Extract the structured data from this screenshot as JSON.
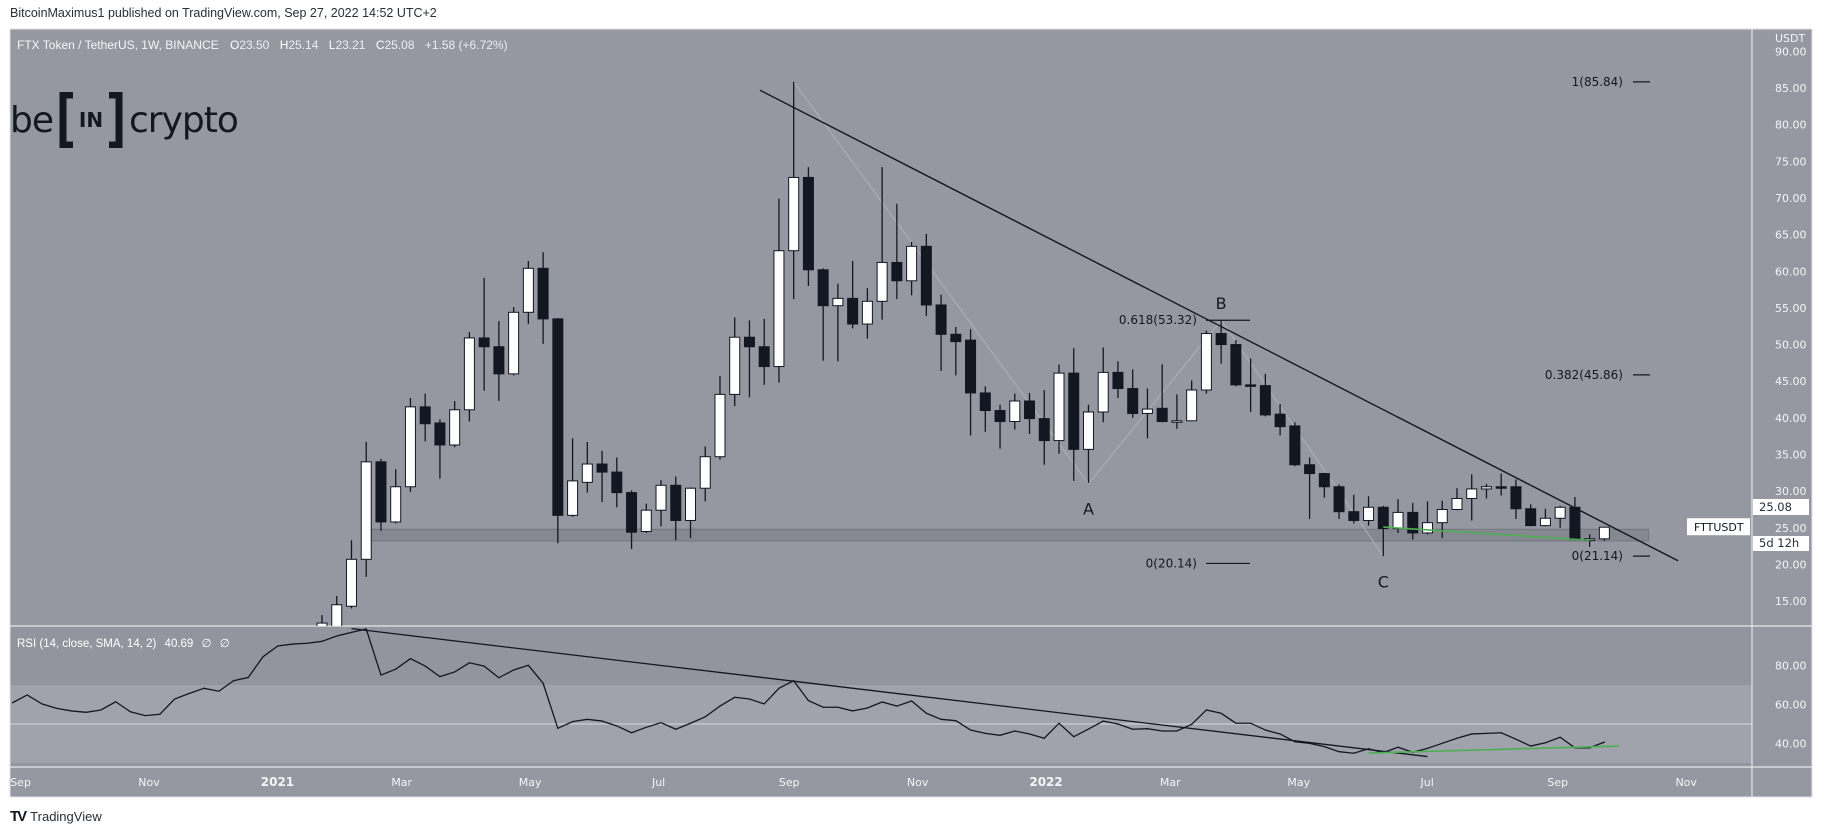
{
  "header": {
    "publisher": "BitcoinMaximus1 published on TradingView.com, Sep 27, 2022 14:52 UTC+2"
  },
  "legend": {
    "symbol": "FTX Token / TetherUS, 1W, BINANCE",
    "open_label": "O",
    "open": "23.50",
    "high_label": "H",
    "high": "25.14",
    "low_label": "L",
    "low": "23.21",
    "close_label": "C",
    "close": "25.08",
    "change": "+1.58 (+6.72%)"
  },
  "watermark": {
    "text": "beincrypto",
    "parts": [
      "be",
      "IN",
      "crypto"
    ]
  },
  "rsi_legend": {
    "title": "RSI (14, close, SMA, 14, 2)",
    "value": "40.69",
    "extra1": "∅",
    "extra2": "∅"
  },
  "price_axis": {
    "currency": "USDT",
    "ticks": [
      "15.00",
      "20.00",
      "25.00",
      "30.00",
      "35.00",
      "40.00",
      "45.00",
      "50.00",
      "55.00",
      "60.00",
      "65.00",
      "70.00",
      "75.00",
      "80.00",
      "85.00",
      "90.00"
    ],
    "last_price": "25.08",
    "countdown": "5d 12h",
    "symbol_tag": "FTTUSDT"
  },
  "rsi_axis": {
    "ticks": [
      "40.00",
      "60.00",
      "80.00"
    ]
  },
  "time_axis": {
    "ticks": [
      {
        "label": "Sep",
        "date": "2020-09-01"
      },
      {
        "label": "Nov",
        "date": "2020-11-01"
      },
      {
        "label": "2021",
        "date": "2021-01-01"
      },
      {
        "label": "Mar",
        "date": "2021-03-01"
      },
      {
        "label": "May",
        "date": "2021-05-01"
      },
      {
        "label": "Jul",
        "date": "2021-07-01"
      },
      {
        "label": "Sep",
        "date": "2021-09-01"
      },
      {
        "label": "Nov",
        "date": "2021-11-01"
      },
      {
        "label": "2022",
        "date": "2022-01-01"
      },
      {
        "label": "Mar",
        "date": "2022-03-01"
      },
      {
        "label": "May",
        "date": "2022-05-01"
      },
      {
        "label": "Jul",
        "date": "2022-07-01"
      },
      {
        "label": "Sep",
        "date": "2022-09-01"
      },
      {
        "label": "Nov",
        "date": "2022-11-01"
      }
    ]
  },
  "footer": {
    "brand": "TradingView",
    "mark": "TV"
  },
  "colors": {
    "pane": "#9598a1",
    "rsi_band": "#a0a3ab",
    "axis": "#9598a1",
    "bull": "#ffffff",
    "bear": "#131722",
    "line": "#131722",
    "green": "#4caf50",
    "zigzag": "#aeb1b8",
    "zone": "#80838c"
  },
  "chart_data": [
    {
      "type": "candlestick",
      "title": "FTX Token / TetherUS, 1W, BINANCE",
      "ylabel": "USDT",
      "ylim": [
        11.6,
        92
      ],
      "interval": "1W",
      "first_week": "2021-01-25",
      "ohlc_fields": [
        "open",
        "high",
        "low",
        "close"
      ],
      "candles": [
        [
          10,
          13.1,
          9,
          12
        ],
        [
          11.5,
          15.7,
          11,
          14.5
        ],
        [
          14.3,
          23.3,
          14,
          20.7
        ],
        [
          20.7,
          36.7,
          18.3,
          34
        ],
        [
          34,
          34.4,
          24.6,
          25.8
        ],
        [
          25.8,
          33,
          25.6,
          30.6
        ],
        [
          30.6,
          42.7,
          29.9,
          41.5
        ],
        [
          41.5,
          43.3,
          36.8,
          39.2
        ],
        [
          39.3,
          39.8,
          31.7,
          36.3
        ],
        [
          36.3,
          42.3,
          36,
          41.1
        ],
        [
          41.1,
          51.7,
          39.5,
          50.9
        ],
        [
          50.9,
          59.1,
          43.7,
          49.7
        ],
        [
          49.7,
          53.2,
          42.3,
          46
        ],
        [
          46,
          55.1,
          45.8,
          54.4
        ],
        [
          54.4,
          61.4,
          52.8,
          60.4
        ],
        [
          60.4,
          62.6,
          50.1,
          53.5
        ],
        [
          53.5,
          53.6,
          22.9,
          26.7
        ],
        [
          26.7,
          37.2,
          26.5,
          31.4
        ],
        [
          31.2,
          36.7,
          29.8,
          33.7
        ],
        [
          33.7,
          35.5,
          28.5,
          32.6
        ],
        [
          32.6,
          34.6,
          27.8,
          29.8
        ],
        [
          29.8,
          30.1,
          22.1,
          24.4
        ],
        [
          24.5,
          28.3,
          24.3,
          27.4
        ],
        [
          27.4,
          31.5,
          25.2,
          30.8
        ],
        [
          30.8,
          32,
          23.3,
          26
        ],
        [
          26,
          30.5,
          23.6,
          30.4
        ],
        [
          30.4,
          36.1,
          28.6,
          34.7
        ],
        [
          34.7,
          45.7,
          34.3,
          43.2
        ],
        [
          43.2,
          53.7,
          41.6,
          51
        ],
        [
          51,
          53.3,
          42.8,
          49.7
        ],
        [
          49.7,
          53.5,
          44.5,
          47
        ],
        [
          47,
          69.9,
          44.8,
          62.8
        ],
        [
          62.8,
          85.84,
          56.2,
          72.8
        ],
        [
          72.8,
          74.2,
          58,
          60.2
        ],
        [
          60.2,
          60.4,
          47.8,
          55.3
        ],
        [
          55.3,
          58.3,
          47.7,
          56.3
        ],
        [
          56.3,
          61.4,
          52.2,
          52.8
        ],
        [
          52.8,
          57.7,
          50.8,
          55.9
        ],
        [
          55.9,
          74.2,
          53.4,
          61.2
        ],
        [
          61.2,
          69.2,
          56.2,
          58.7
        ],
        [
          58.7,
          64,
          56.7,
          63.4
        ],
        [
          63.4,
          65.1,
          53.9,
          55.4
        ],
        [
          55.4,
          56.8,
          46.4,
          51.4
        ],
        [
          51.4,
          52.4,
          45.8,
          50.4
        ],
        [
          50.6,
          52.1,
          37.6,
          43.4
        ],
        [
          43.4,
          44.3,
          38.1,
          41
        ],
        [
          41,
          41.8,
          35.8,
          39.5
        ],
        [
          39.5,
          43.3,
          38.4,
          42.3
        ],
        [
          42.3,
          43.4,
          37.8,
          39.9
        ],
        [
          39.9,
          43.8,
          33.6,
          36.9
        ],
        [
          36.9,
          47.3,
          35.1,
          46.1
        ],
        [
          46.1,
          49.5,
          31.4,
          35.7
        ],
        [
          35.7,
          41.8,
          31.1,
          40.8
        ],
        [
          40.8,
          49.6,
          39.4,
          46.2
        ],
        [
          46.2,
          47.7,
          42.7,
          44
        ],
        [
          44,
          46.6,
          40,
          40.6
        ],
        [
          40.6,
          44,
          37.2,
          41.2
        ],
        [
          41.3,
          47.3,
          39.4,
          39.5
        ],
        [
          39.5,
          43.2,
          38.5,
          39.6
        ],
        [
          39.6,
          45.1,
          39.5,
          43.8
        ],
        [
          43.8,
          51.9,
          43.3,
          51.5
        ],
        [
          51.5,
          53.32,
          47.4,
          50
        ],
        [
          50,
          50.6,
          44.3,
          44.5
        ],
        [
          44.5,
          48.1,
          40.8,
          44.4
        ],
        [
          44.4,
          46,
          40.2,
          40.4
        ],
        [
          40.5,
          41.9,
          37.6,
          38.8
        ],
        [
          38.9,
          39.4,
          33.4,
          33.6
        ],
        [
          33.6,
          34.6,
          26.2,
          32.4
        ],
        [
          32.4,
          32.5,
          29.1,
          30.6
        ],
        [
          30.6,
          30.9,
          26.2,
          27.2
        ],
        [
          27.2,
          29.5,
          25.6,
          26
        ],
        [
          26,
          29.3,
          25.3,
          27.8
        ],
        [
          27.8,
          28,
          21.14,
          24.9
        ],
        [
          24.9,
          28.9,
          24.3,
          27.1
        ],
        [
          27.1,
          28.4,
          23.4,
          24.3
        ],
        [
          24.3,
          28.6,
          24.1,
          25.7
        ],
        [
          25.7,
          28.7,
          23.6,
          27.5
        ],
        [
          27.5,
          30.4,
          27.4,
          29
        ],
        [
          29,
          32.3,
          26,
          30.3
        ],
        [
          30.3,
          31,
          29,
          30.6
        ],
        [
          30.6,
          32.4,
          29.4,
          30.5
        ],
        [
          30.6,
          31.6,
          26.2,
          27.6
        ],
        [
          27.6,
          28.2,
          25.2,
          25.3
        ],
        [
          25.3,
          27.6,
          25.2,
          26.3
        ],
        [
          26.3,
          28,
          25,
          27.8
        ],
        [
          27.8,
          29.2,
          23.3,
          23.4
        ],
        [
          23.4,
          24.1,
          22.4,
          23.5
        ],
        [
          23.5,
          25.14,
          23.21,
          25.08
        ]
      ],
      "drawings": {
        "descending_trendline": [
          [
            "2021-08-21",
            84.7
          ],
          [
            "2022-10-31",
            20.5
          ]
        ],
        "support_zone": {
          "from": "2021-02-15",
          "to": "2022-10-17",
          "low": 23.2,
          "high": 24.8
        },
        "green_support_line": [
          [
            "2022-06-13",
            25.1
          ],
          [
            "2022-09-19",
            23.3
          ]
        ],
        "wave_zigzag": [
          [
            "2021-09-06",
            85.84
          ],
          [
            "2022-01-24",
            31.0
          ],
          [
            "2022-03-28",
            53.32
          ],
          [
            "2022-06-13",
            21.14
          ]
        ],
        "wave_labels": [
          {
            "text": "A",
            "date": "2022-01-24",
            "price": 27.6
          },
          {
            "text": "B",
            "date": "2022-03-28",
            "price": 55.7
          },
          {
            "text": "C",
            "date": "2022-06-13",
            "price": 17.7
          }
        ],
        "fib_retracements": [
          {
            "levels": [
              {
                "label": "0.618(53.32)",
                "price": 53.32
              },
              {
                "label": "0(20.14)",
                "price": 20.14
              }
            ]
          },
          {
            "levels": [
              {
                "label": "1(85.84)",
                "price": 85.84
              },
              {
                "label": "0.382(45.86)",
                "price": 45.86
              },
              {
                "label": "0(21.14)",
                "price": 21.14
              }
            ]
          }
        ]
      }
    },
    {
      "type": "line",
      "title": "RSI (14, close, SMA, 14, 2)",
      "ylim": [
        25,
        104
      ],
      "bands": {
        "upper": 70,
        "middle": 50,
        "lower": 30
      },
      "first_week": "2020-08-31",
      "values": [
        60.9,
        64.9,
        60.3,
        58.0,
        56.7,
        56.0,
        57.2,
        61.4,
        56.3,
        54.3,
        55.0,
        62.8,
        65.7,
        68.3,
        66.8,
        72.2,
        73.9,
        84.5,
        90,
        91,
        91.4,
        92.4,
        95.1,
        97,
        98.7,
        75.1,
        78.1,
        83.5,
        79.7,
        74.3,
        76.7,
        81.4,
        79.7,
        73.7,
        77.7,
        80.1,
        70.9,
        47.8,
        51.2,
        52.4,
        51.5,
        49,
        45.5,
        48.3,
        50.7,
        47.3,
        50.4,
        53.7,
        59.2,
        63.7,
        62.8,
        60.3,
        68.3,
        72.2,
        62,
        58.6,
        58.6,
        56.7,
        58.2,
        61.3,
        59.2,
        61.8,
        55.5,
        52.4,
        51.7,
        46.9,
        45.2,
        44.2,
        46.4,
        44.9,
        42.7,
        50.4,
        43.5,
        47.4,
        51.5,
        50,
        47.3,
        47.6,
        46.4,
        46.4,
        49.8,
        57.2,
        55.5,
        50.4,
        50.4,
        46.9,
        44.9,
        40.9,
        40.1,
        38.4,
        35.8,
        35,
        37.3,
        35.3,
        38.1,
        35.5,
        37.5,
        40.1,
        42.7,
        44.9,
        45.2,
        45.5,
        42.2,
        38.7,
        40.4,
        43.2,
        37.8,
        37.8,
        40.69
      ],
      "drawings": {
        "rsi_trendline": [
          [
            "2021-02-08",
            98.9
          ],
          [
            "2022-07-04",
            33.3
          ]
        ],
        "rsi_green_line": [
          [
            "2022-06-06",
            35.1
          ],
          [
            "2022-10-03",
            38.7
          ]
        ]
      }
    }
  ]
}
